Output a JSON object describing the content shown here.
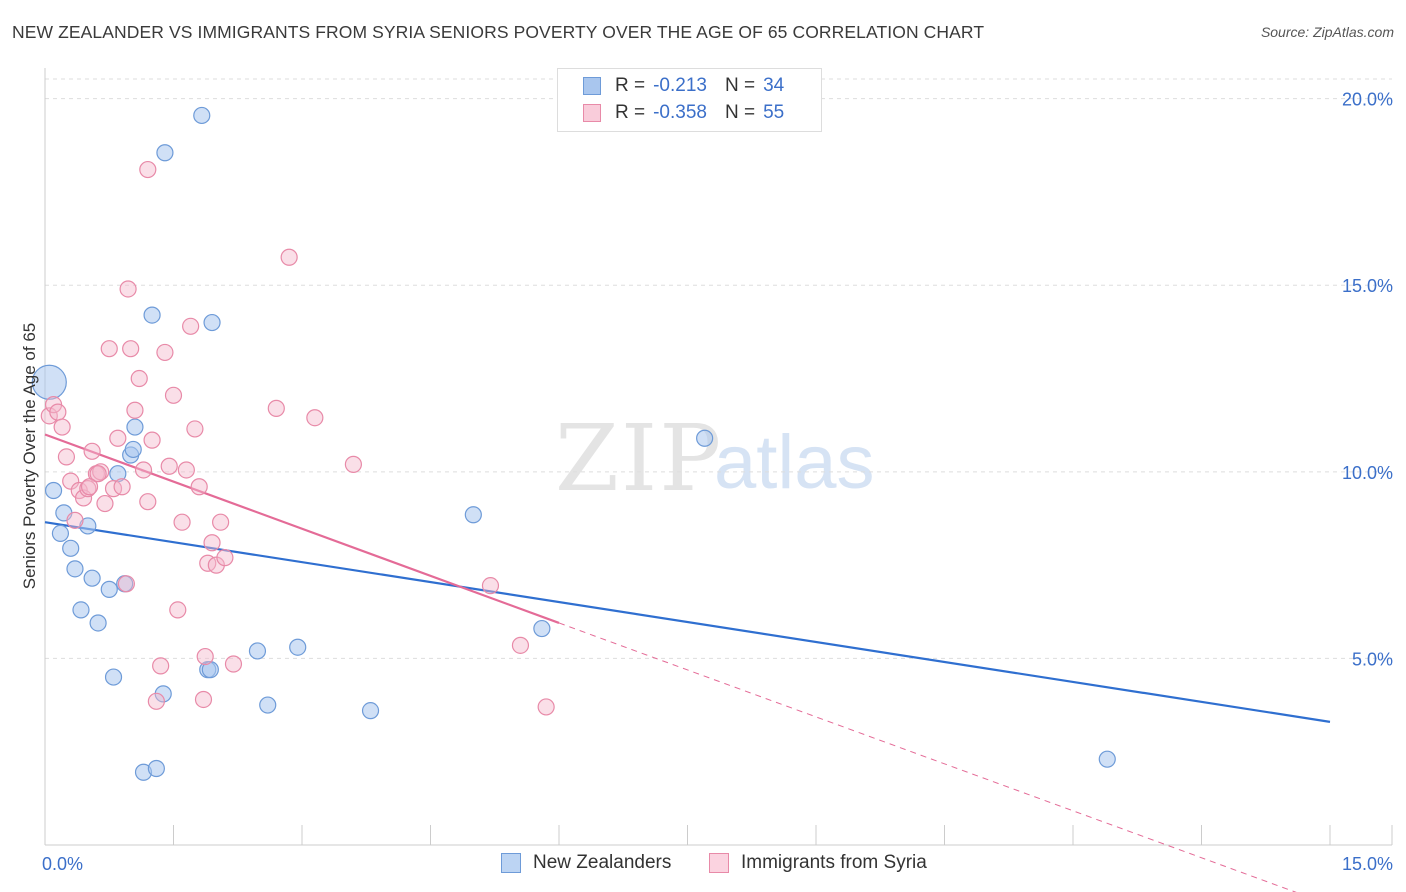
{
  "title": "NEW ZEALANDER VS IMMIGRANTS FROM SYRIA SENIORS POVERTY OVER THE AGE OF 65 CORRELATION CHART",
  "source": "Source: ZipAtlas.com",
  "watermark": {
    "zip": "ZIP",
    "atlas": "atlas"
  },
  "legend": {
    "series1": {
      "r_label": "R =",
      "r_value": "-0.213",
      "n_label": "N =",
      "n_value": "34"
    },
    "series2": {
      "r_label": "R =",
      "r_value": "-0.358",
      "n_label": "N =",
      "n_value": "55"
    }
  },
  "bottom_legend": {
    "series1": "New Zealanders",
    "series2": "Immigrants from Syria"
  },
  "colors": {
    "blue_fill": "#a9c6ee",
    "blue_stroke": "#6e9bd8",
    "blue_line": "#2f6fd0",
    "pink_fill": "#f4b8cb",
    "pink_stroke": "#e88aa8",
    "pink_line": "#e46b97",
    "tick_text": "#3b6fc9",
    "grid": "#dddddd",
    "axis": "#cccccc"
  },
  "chart_data": {
    "type": "scatter",
    "title": "NEW ZEALANDER VS IMMIGRANTS FROM SYRIA SENIORS POVERTY OVER THE AGE OF 65 CORRELATION CHART",
    "xlabel": "",
    "ylabel": "Seniors Poverty Over the Age of 65",
    "xlim": [
      0,
      15
    ],
    "ylim": [
      0,
      20.5
    ],
    "x_tick_labels": [
      "0.0%",
      "15.0%"
    ],
    "y_ticks": [
      5,
      10,
      15,
      20
    ],
    "y_tick_labels": [
      "5.0%",
      "10.0%",
      "15.0%",
      "20.0%"
    ],
    "grid": true,
    "series": [
      {
        "name": "New Zealanders",
        "color": "blue",
        "r": -0.213,
        "n": 34,
        "trend": {
          "x": [
            0,
            15
          ],
          "y": [
            8.65,
            3.3
          ]
        },
        "points": [
          {
            "x": 0.05,
            "y": 12.4,
            "big": true
          },
          {
            "x": 0.1,
            "y": 9.5
          },
          {
            "x": 0.18,
            "y": 8.35
          },
          {
            "x": 0.22,
            "y": 8.9
          },
          {
            "x": 0.3,
            "y": 7.95
          },
          {
            "x": 0.35,
            "y": 7.4
          },
          {
            "x": 0.42,
            "y": 6.3
          },
          {
            "x": 0.5,
            "y": 8.55
          },
          {
            "x": 0.55,
            "y": 7.15
          },
          {
            "x": 0.62,
            "y": 5.95
          },
          {
            "x": 0.75,
            "y": 6.85
          },
          {
            "x": 0.8,
            "y": 4.5
          },
          {
            "x": 0.85,
            "y": 9.95
          },
          {
            "x": 0.93,
            "y": 7.0
          },
          {
            "x": 1.0,
            "y": 10.45
          },
          {
            "x": 1.05,
            "y": 11.2
          },
          {
            "x": 1.15,
            "y": 1.95
          },
          {
            "x": 1.3,
            "y": 2.05
          },
          {
            "x": 1.38,
            "y": 4.05
          },
          {
            "x": 1.25,
            "y": 14.2
          },
          {
            "x": 1.4,
            "y": 18.55
          },
          {
            "x": 1.83,
            "y": 19.55
          },
          {
            "x": 1.9,
            "y": 4.7
          },
          {
            "x": 1.95,
            "y": 14.0
          },
          {
            "x": 1.93,
            "y": 4.7
          },
          {
            "x": 2.48,
            "y": 5.2
          },
          {
            "x": 2.6,
            "y": 3.75
          },
          {
            "x": 2.95,
            "y": 5.3
          },
          {
            "x": 3.8,
            "y": 3.6
          },
          {
            "x": 5.0,
            "y": 8.85
          },
          {
            "x": 5.8,
            "y": 5.8
          },
          {
            "x": 7.7,
            "y": 10.9
          },
          {
            "x": 12.4,
            "y": 2.3
          },
          {
            "x": 1.03,
            "y": 10.6
          }
        ]
      },
      {
        "name": "Immigrants from Syria",
        "color": "pink",
        "r": -0.358,
        "n": 55,
        "trend": {
          "x": [
            0,
            6.0
          ],
          "y": [
            11.0,
            5.95
          ]
        },
        "trend_dashed": {
          "x": [
            6.0,
            15
          ],
          "y": [
            5.95,
            -1.6
          ]
        },
        "points": [
          {
            "x": 0.05,
            "y": 11.5
          },
          {
            "x": 0.1,
            "y": 11.8
          },
          {
            "x": 0.15,
            "y": 11.6
          },
          {
            "x": 0.2,
            "y": 11.2
          },
          {
            "x": 0.25,
            "y": 10.4
          },
          {
            "x": 0.3,
            "y": 9.75
          },
          {
            "x": 0.35,
            "y": 8.7
          },
          {
            "x": 0.4,
            "y": 9.5
          },
          {
            "x": 0.45,
            "y": 9.3
          },
          {
            "x": 0.5,
            "y": 9.55
          },
          {
            "x": 0.55,
            "y": 10.55
          },
          {
            "x": 0.6,
            "y": 9.95
          },
          {
            "x": 0.65,
            "y": 10.0
          },
          {
            "x": 0.7,
            "y": 9.15
          },
          {
            "x": 0.75,
            "y": 13.3
          },
          {
            "x": 0.8,
            "y": 9.55
          },
          {
            "x": 0.85,
            "y": 10.9
          },
          {
            "x": 0.9,
            "y": 9.6
          },
          {
            "x": 0.95,
            "y": 7.0
          },
          {
            "x": 0.97,
            "y": 14.9
          },
          {
            "x": 1.0,
            "y": 13.3
          },
          {
            "x": 1.05,
            "y": 11.65
          },
          {
            "x": 1.1,
            "y": 12.5
          },
          {
            "x": 1.15,
            "y": 10.05
          },
          {
            "x": 1.2,
            "y": 9.2
          },
          {
            "x": 1.25,
            "y": 10.85
          },
          {
            "x": 1.3,
            "y": 3.85
          },
          {
            "x": 1.35,
            "y": 4.8
          },
          {
            "x": 1.4,
            "y": 13.2
          },
          {
            "x": 1.45,
            "y": 10.15
          },
          {
            "x": 1.5,
            "y": 12.05
          },
          {
            "x": 1.55,
            "y": 6.3
          },
          {
            "x": 1.6,
            "y": 8.65
          },
          {
            "x": 1.65,
            "y": 10.05
          },
          {
            "x": 1.7,
            "y": 13.9
          },
          {
            "x": 1.75,
            "y": 11.15
          },
          {
            "x": 1.8,
            "y": 9.6
          },
          {
            "x": 1.85,
            "y": 3.9
          },
          {
            "x": 1.87,
            "y": 5.05
          },
          {
            "x": 1.9,
            "y": 7.55
          },
          {
            "x": 1.95,
            "y": 8.1
          },
          {
            "x": 2.0,
            "y": 7.5
          },
          {
            "x": 2.05,
            "y": 8.65
          },
          {
            "x": 2.1,
            "y": 7.7
          },
          {
            "x": 2.2,
            "y": 4.85
          },
          {
            "x": 2.7,
            "y": 11.7
          },
          {
            "x": 2.85,
            "y": 15.75
          },
          {
            "x": 3.15,
            "y": 11.45
          },
          {
            "x": 3.6,
            "y": 10.2
          },
          {
            "x": 5.2,
            "y": 6.95
          },
          {
            "x": 5.55,
            "y": 5.35
          },
          {
            "x": 5.85,
            "y": 3.7
          },
          {
            "x": 1.2,
            "y": 18.1
          },
          {
            "x": 0.62,
            "y": 9.95
          },
          {
            "x": 0.52,
            "y": 9.6
          }
        ]
      }
    ]
  }
}
